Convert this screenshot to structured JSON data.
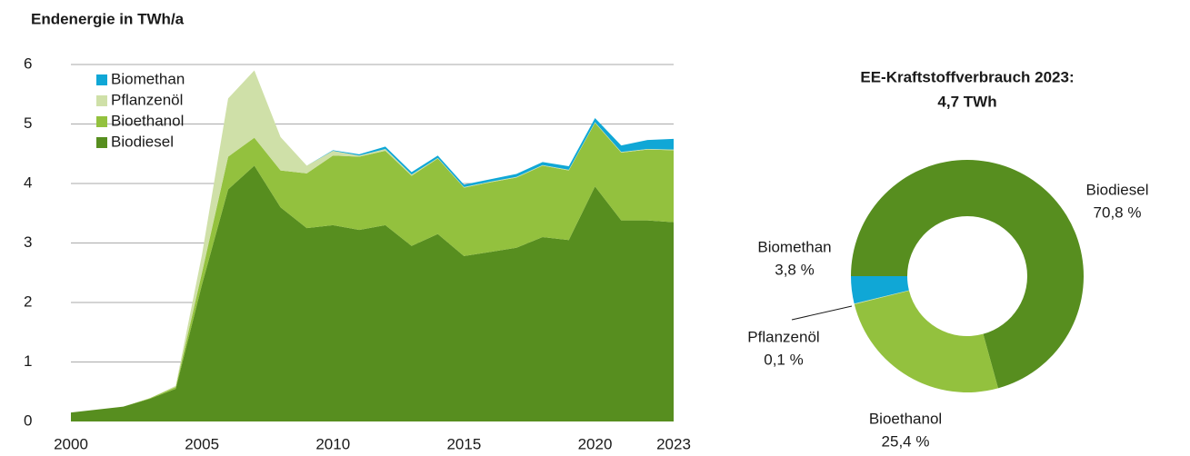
{
  "chart_data": [
    {
      "type": "stacked_area",
      "title": "Endenergie in TWh/a",
      "x": [
        2000,
        2001,
        2002,
        2003,
        2004,
        2005,
        2006,
        2007,
        2008,
        2009,
        2010,
        2011,
        2012,
        2013,
        2014,
        2015,
        2016,
        2017,
        2018,
        2019,
        2020,
        2021,
        2022,
        2023
      ],
      "series": [
        {
          "name": "Biodiesel",
          "color": "#578e1f",
          "values": [
            0.15,
            0.2,
            0.25,
            0.38,
            0.55,
            2.3,
            3.9,
            4.3,
            3.6,
            3.25,
            3.3,
            3.22,
            3.3,
            2.95,
            3.15,
            2.78,
            2.85,
            2.92,
            3.1,
            3.05,
            3.95,
            3.38,
            3.38,
            3.35
          ]
        },
        {
          "name": "Bioethanol",
          "color": "#93c13e",
          "values": [
            0,
            0,
            0,
            0.01,
            0.03,
            0.2,
            0.55,
            0.47,
            0.62,
            0.92,
            1.17,
            1.23,
            1.25,
            1.18,
            1.27,
            1.15,
            1.17,
            1.18,
            1.2,
            1.17,
            1.07,
            1.14,
            1.19,
            1.21
          ]
        },
        {
          "name": "Pflanzenöl",
          "color": "#cfe0a8",
          "values": [
            0,
            0,
            0,
            0,
            0.02,
            0.3,
            0.98,
            1.13,
            0.56,
            0.13,
            0.08,
            0.02,
            0.03,
            0.02,
            0.01,
            0.01,
            0.01,
            0.01,
            0.01,
            0.01,
            0.01,
            0.01,
            0.01,
            0.01
          ]
        },
        {
          "name": "Biomethan",
          "color": "#10a7d6",
          "values": [
            0,
            0,
            0,
            0,
            0,
            0,
            0,
            0,
            0,
            0,
            0.01,
            0.02,
            0.04,
            0.04,
            0.04,
            0.04,
            0.04,
            0.05,
            0.05,
            0.06,
            0.07,
            0.11,
            0.15,
            0.18
          ]
        }
      ],
      "xlim": [
        2000,
        2023
      ],
      "xticks": [
        2000,
        2005,
        2010,
        2015,
        2020,
        2023
      ],
      "ylim": [
        0,
        6
      ],
      "yticks": [
        0,
        1,
        2,
        3,
        4,
        5,
        6
      ],
      "grid": true,
      "legend": "upper left"
    },
    {
      "type": "donut",
      "title": "EE-Kraftstoffverbrauch 2023:",
      "subtitle": "4,7 TWh",
      "categories": [
        "Biodiesel",
        "Bioethanol",
        "Pflanzenöl",
        "Biomethan"
      ],
      "values": [
        70.8,
        25.4,
        0.1,
        3.8
      ],
      "value_labels": [
        "70,8 %",
        "25,4 %",
        "0,1 %",
        "3,8 %"
      ],
      "colors": [
        "#578e1f",
        "#93c13e",
        "#cfe0a8",
        "#10a7d6"
      ]
    }
  ]
}
